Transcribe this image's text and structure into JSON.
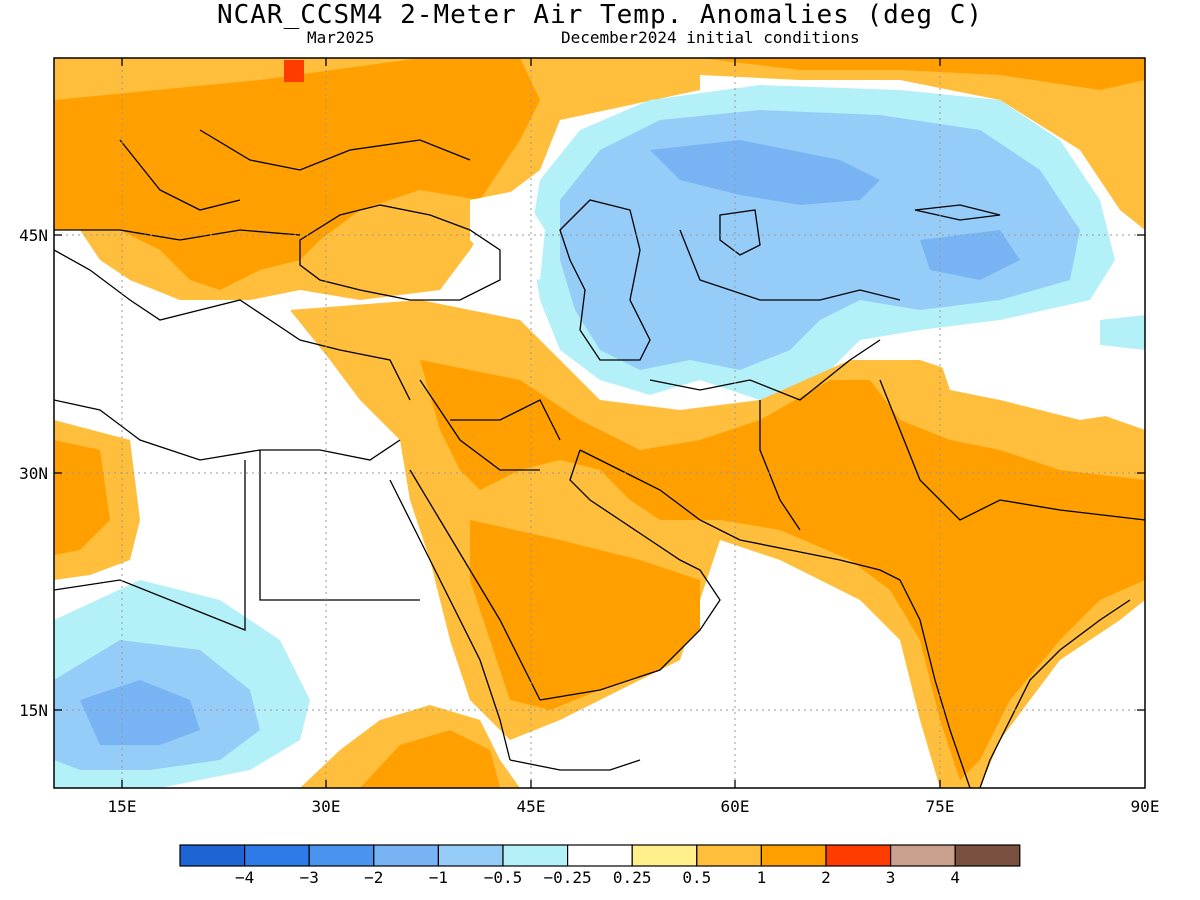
{
  "header": {
    "title": "NCAR_CCSM4 2-Meter Air Temp. Anomalies (deg C)",
    "month": "Mar2025",
    "init": "December2024 initial conditions"
  },
  "axes": {
    "lat_labels": [
      "45N",
      "30N",
      "15N"
    ],
    "lon_labels": [
      "15E",
      "30E",
      "45E",
      "60E",
      "75E",
      "90E"
    ]
  },
  "colorbar": {
    "colors": [
      "#1e64d4",
      "#2d7ae8",
      "#4a94f0",
      "#78b4f4",
      "#96ccf8",
      "#b4f0f8",
      "#ffffff",
      "#fff08c",
      "#ffbe3c",
      "#ffa000",
      "#ff3c00",
      "#c8a08c",
      "#7a5040"
    ],
    "labels": [
      "-4",
      "-3",
      "-2",
      "-1",
      "-0.5",
      "-0.25",
      "0.25",
      "0.5",
      "1",
      "2",
      "3",
      "4"
    ]
  }
}
